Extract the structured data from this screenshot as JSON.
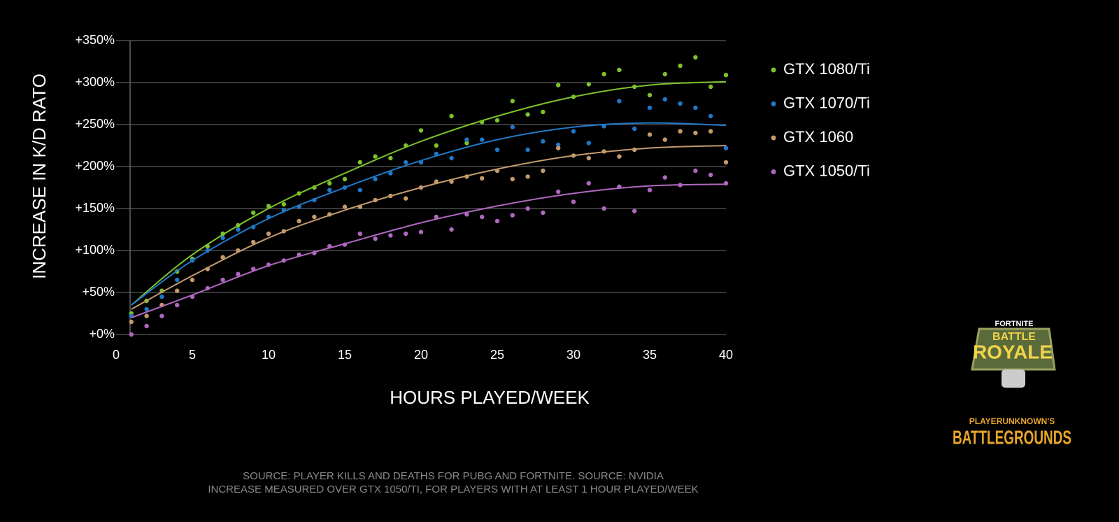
{
  "chart_data": {
    "type": "scatter",
    "xlabel": "HOURS PLAYED/WEEK",
    "ylabel": "INCREASE IN K/D RATO",
    "xlim": [
      0,
      40
    ],
    "xticks": [
      0,
      5,
      10,
      15,
      20,
      25,
      30,
      35,
      40
    ],
    "ylim": [
      0,
      350
    ],
    "yticks": [
      {
        "value": 0,
        "label": "+0%"
      },
      {
        "value": 50,
        "label": "+50%"
      },
      {
        "value": 100,
        "label": "+100%"
      },
      {
        "value": 150,
        "label": "+150%"
      },
      {
        "value": 200,
        "label": "+200%"
      },
      {
        "value": 250,
        "label": "+250%"
      },
      {
        "value": 300,
        "label": "+300%"
      },
      {
        "value": 350,
        "label": "+350%"
      }
    ],
    "grid": true,
    "x": [
      1,
      2,
      3,
      4,
      5,
      6,
      7,
      8,
      9,
      10,
      11,
      12,
      13,
      14,
      15,
      16,
      17,
      18,
      19,
      20,
      21,
      22,
      23,
      24,
      25,
      26,
      27,
      28,
      29,
      30,
      31,
      32,
      33,
      34,
      35,
      36,
      37,
      38,
      39,
      40
    ],
    "trend_x": [
      1,
      5,
      10,
      15,
      20,
      25,
      30,
      35,
      40
    ],
    "series": [
      {
        "name": "GTX 1080/Ti",
        "color": "#7dc22b",
        "values": [
          25,
          40,
          52,
          75,
          90,
          105,
          120,
          130,
          145,
          153,
          155,
          168,
          175,
          180,
          185,
          205,
          212,
          210,
          225,
          243,
          225,
          260,
          228,
          253,
          255,
          278,
          262,
          265,
          297,
          283,
          298,
          310,
          315,
          295,
          285,
          310,
          320,
          330,
          295,
          309
        ],
        "trend": [
          35,
          95,
          150,
          192,
          230,
          260,
          283,
          297,
          301
        ]
      },
      {
        "name": "GTX 1070/Ti",
        "color": "#1f78c8",
        "values": [
          22,
          30,
          45,
          65,
          88,
          100,
          115,
          125,
          128,
          140,
          148,
          152,
          160,
          172,
          175,
          172,
          185,
          192,
          205,
          205,
          215,
          210,
          232,
          232,
          220,
          247,
          220,
          230,
          226,
          242,
          228,
          248,
          278,
          245,
          270,
          280,
          275,
          270,
          260,
          222
        ],
        "trend": [
          35,
          88,
          138,
          175,
          207,
          232,
          247,
          252,
          249
        ]
      },
      {
        "name": "GTX 1060",
        "color": "#c49a6c",
        "values": [
          15,
          22,
          35,
          52,
          65,
          78,
          92,
          100,
          110,
          120,
          123,
          135,
          140,
          143,
          152,
          152,
          160,
          165,
          162,
          175,
          182,
          182,
          188,
          186,
          195,
          185,
          188,
          195,
          222,
          213,
          210,
          218,
          212,
          220,
          238,
          232,
          242,
          240,
          242,
          205
        ],
        "trend": [
          30,
          70,
          115,
          148,
          175,
          197,
          213,
          222,
          225
        ]
      },
      {
        "name": "GTX 1050/Ti",
        "color": "#b067c0",
        "values": [
          0,
          10,
          22,
          35,
          45,
          55,
          65,
          72,
          78,
          83,
          88,
          95,
          97,
          105,
          107,
          120,
          114,
          118,
          120,
          122,
          140,
          125,
          143,
          140,
          135,
          142,
          150,
          145,
          170,
          158,
          180,
          150,
          176,
          147,
          172,
          187,
          178,
          195,
          190,
          180
        ],
        "trend": [
          20,
          47,
          82,
          108,
          133,
          153,
          168,
          177,
          179
        ]
      }
    ],
    "legend_position": "right",
    "source_lines": [
      "SOURCE: PLAYER KILLS AND DEATHS FOR PUBG AND FORTNITE. SOURCE: NVIDIA",
      "INCREASE MEASURED OVER GTX 1050/TI, FOR PLAYERS WITH AT LEAST 1 HOUR PLAYED/WEEK"
    ],
    "logos": {
      "fortnite": [
        "FORTNITE",
        "BATTLE",
        "ROYALE"
      ],
      "pubg": [
        "PLAYERUNKNOWN'S",
        "BATTLEGROUNDS"
      ]
    }
  }
}
